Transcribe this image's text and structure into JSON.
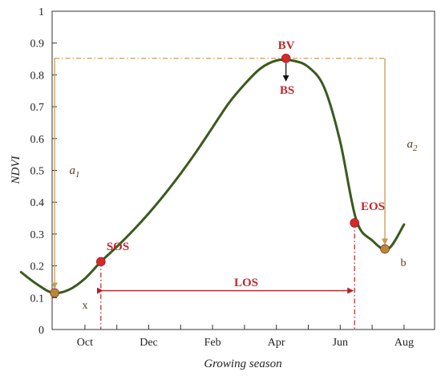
{
  "chart_data": {
    "type": "line",
    "ylabel": "NDVI",
    "xlabel": "Growing season",
    "ylim": [
      0,
      1
    ],
    "yticks": [
      "0",
      "0.1",
      "0.2",
      "0.3",
      "0.4",
      "0.5",
      "0.6",
      "0.7",
      "0.8",
      "0.9",
      "1"
    ],
    "xtick_labels": [
      "Oct",
      "Dec",
      "Feb",
      "Apr",
      "Jun",
      "Aug"
    ],
    "grid": false,
    "colors": {
      "curve": "#3a5a1e",
      "marker_red": "#d42a2a",
      "marker_brown": "#b5873a",
      "guide": "#c89a55",
      "los": "#b3222a"
    },
    "series": [
      {
        "x": [
          0,
          0.5,
          1,
          1.5,
          2,
          2.5,
          3,
          3.5,
          4,
          4.5,
          5,
          5.5,
          6,
          6.5,
          7,
          7.5,
          8,
          8.5,
          9,
          9.5,
          10,
          10.5,
          11,
          11.5,
          12
        ],
        "values": [
          0.18,
          0.142,
          0.115,
          0.125,
          0.16,
          0.213,
          0.26,
          0.31,
          0.365,
          0.425,
          0.49,
          0.56,
          0.635,
          0.71,
          0.77,
          0.82,
          0.845,
          0.845,
          0.825,
          0.76,
          0.59,
          0.345,
          0.28,
          0.253,
          0.33
        ]
      }
    ],
    "annotations": {
      "SOS": {
        "label": "SOS",
        "x": 2.5,
        "y": 0.213
      },
      "BV": {
        "label": "BV",
        "x": 8.3,
        "y": 0.852
      },
      "BS": {
        "label": "BS"
      },
      "EOS": {
        "label": "EOS",
        "x": 10.45,
        "y": 0.335
      },
      "x_point": {
        "label": "x",
        "x": 1.05,
        "y": 0.115
      },
      "b_point": {
        "label": "b",
        "x": 11.4,
        "y": 0.253
      },
      "LOS": {
        "label": "LOS",
        "y": 0.122
      },
      "a1": {
        "label": "a",
        "sub": "1"
      },
      "a2": {
        "label": "a",
        "sub": "2"
      }
    }
  }
}
